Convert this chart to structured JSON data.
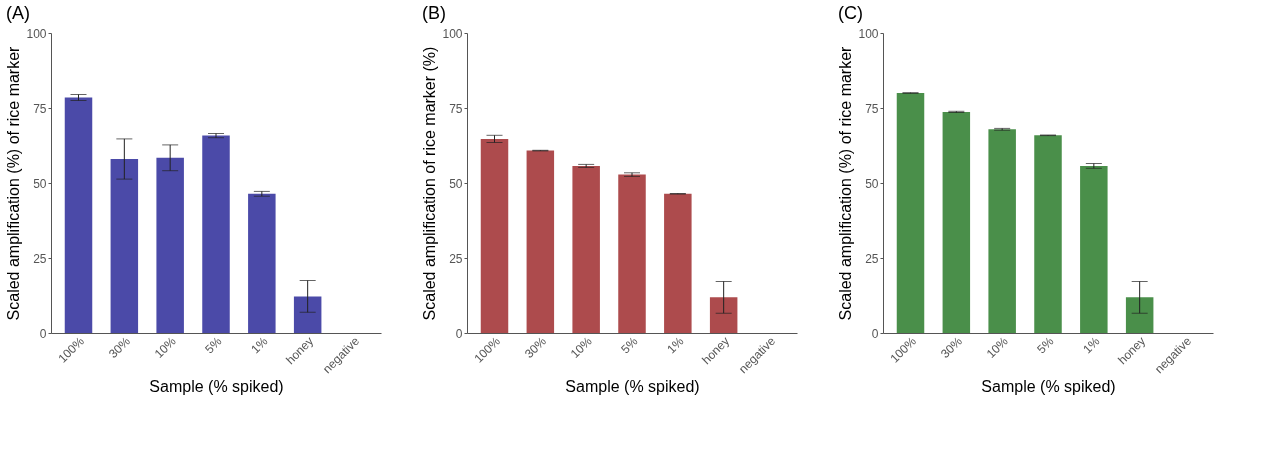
{
  "chart_data": [
    {
      "type": "bar",
      "title": "(A)",
      "xlabel": "Sample (% spiked)",
      "ylabel": "Scaled amplification (%) of rice marker",
      "categories": [
        "100%",
        "30%",
        "10%",
        "5%",
        "1%",
        "honey",
        "negative"
      ],
      "values": [
        78.5,
        58.0,
        58.4,
        65.8,
        46.4,
        12.2,
        0
      ],
      "errors": [
        1.0,
        6.7,
        4.3,
        0.7,
        0.8,
        5.3,
        null
      ],
      "color": "#4b4aa8",
      "ylim": [
        0,
        100
      ],
      "yticks": [
        0,
        25,
        50,
        75,
        100
      ],
      "grid": false
    },
    {
      "type": "bar",
      "title": "(B)",
      "xlabel": "Sample (% spiked)",
      "ylabel": "Scaled amplification of rice marker (%)",
      "categories": [
        "100%",
        "30%",
        "10%",
        "5%",
        "1%",
        "honey",
        "negative"
      ],
      "values": [
        64.7,
        60.8,
        55.7,
        52.8,
        46.4,
        11.9,
        0
      ],
      "errors": [
        1.2,
        0.1,
        0.5,
        0.6,
        0.1,
        5.3,
        null
      ],
      "color": "#ad4b4d",
      "ylim": [
        0,
        100
      ],
      "yticks": [
        0,
        25,
        50,
        75,
        100
      ],
      "grid": false
    },
    {
      "type": "bar",
      "title": "(C)",
      "xlabel": "Sample (% spiked)",
      "ylabel": "Scaled amplification (%) of rice marker",
      "categories": [
        "100%",
        "30%",
        "10%",
        "5%",
        "1%",
        "honey",
        "negative"
      ],
      "values": [
        80.0,
        73.7,
        67.9,
        65.9,
        55.7,
        11.9,
        0
      ],
      "errors": [
        0.1,
        0.2,
        0.3,
        0.1,
        0.8,
        5.3,
        null
      ],
      "color": "#4a8f4a",
      "ylim": [
        0,
        100
      ],
      "yticks": [
        0,
        25,
        50,
        75,
        100
      ],
      "grid": false
    }
  ]
}
